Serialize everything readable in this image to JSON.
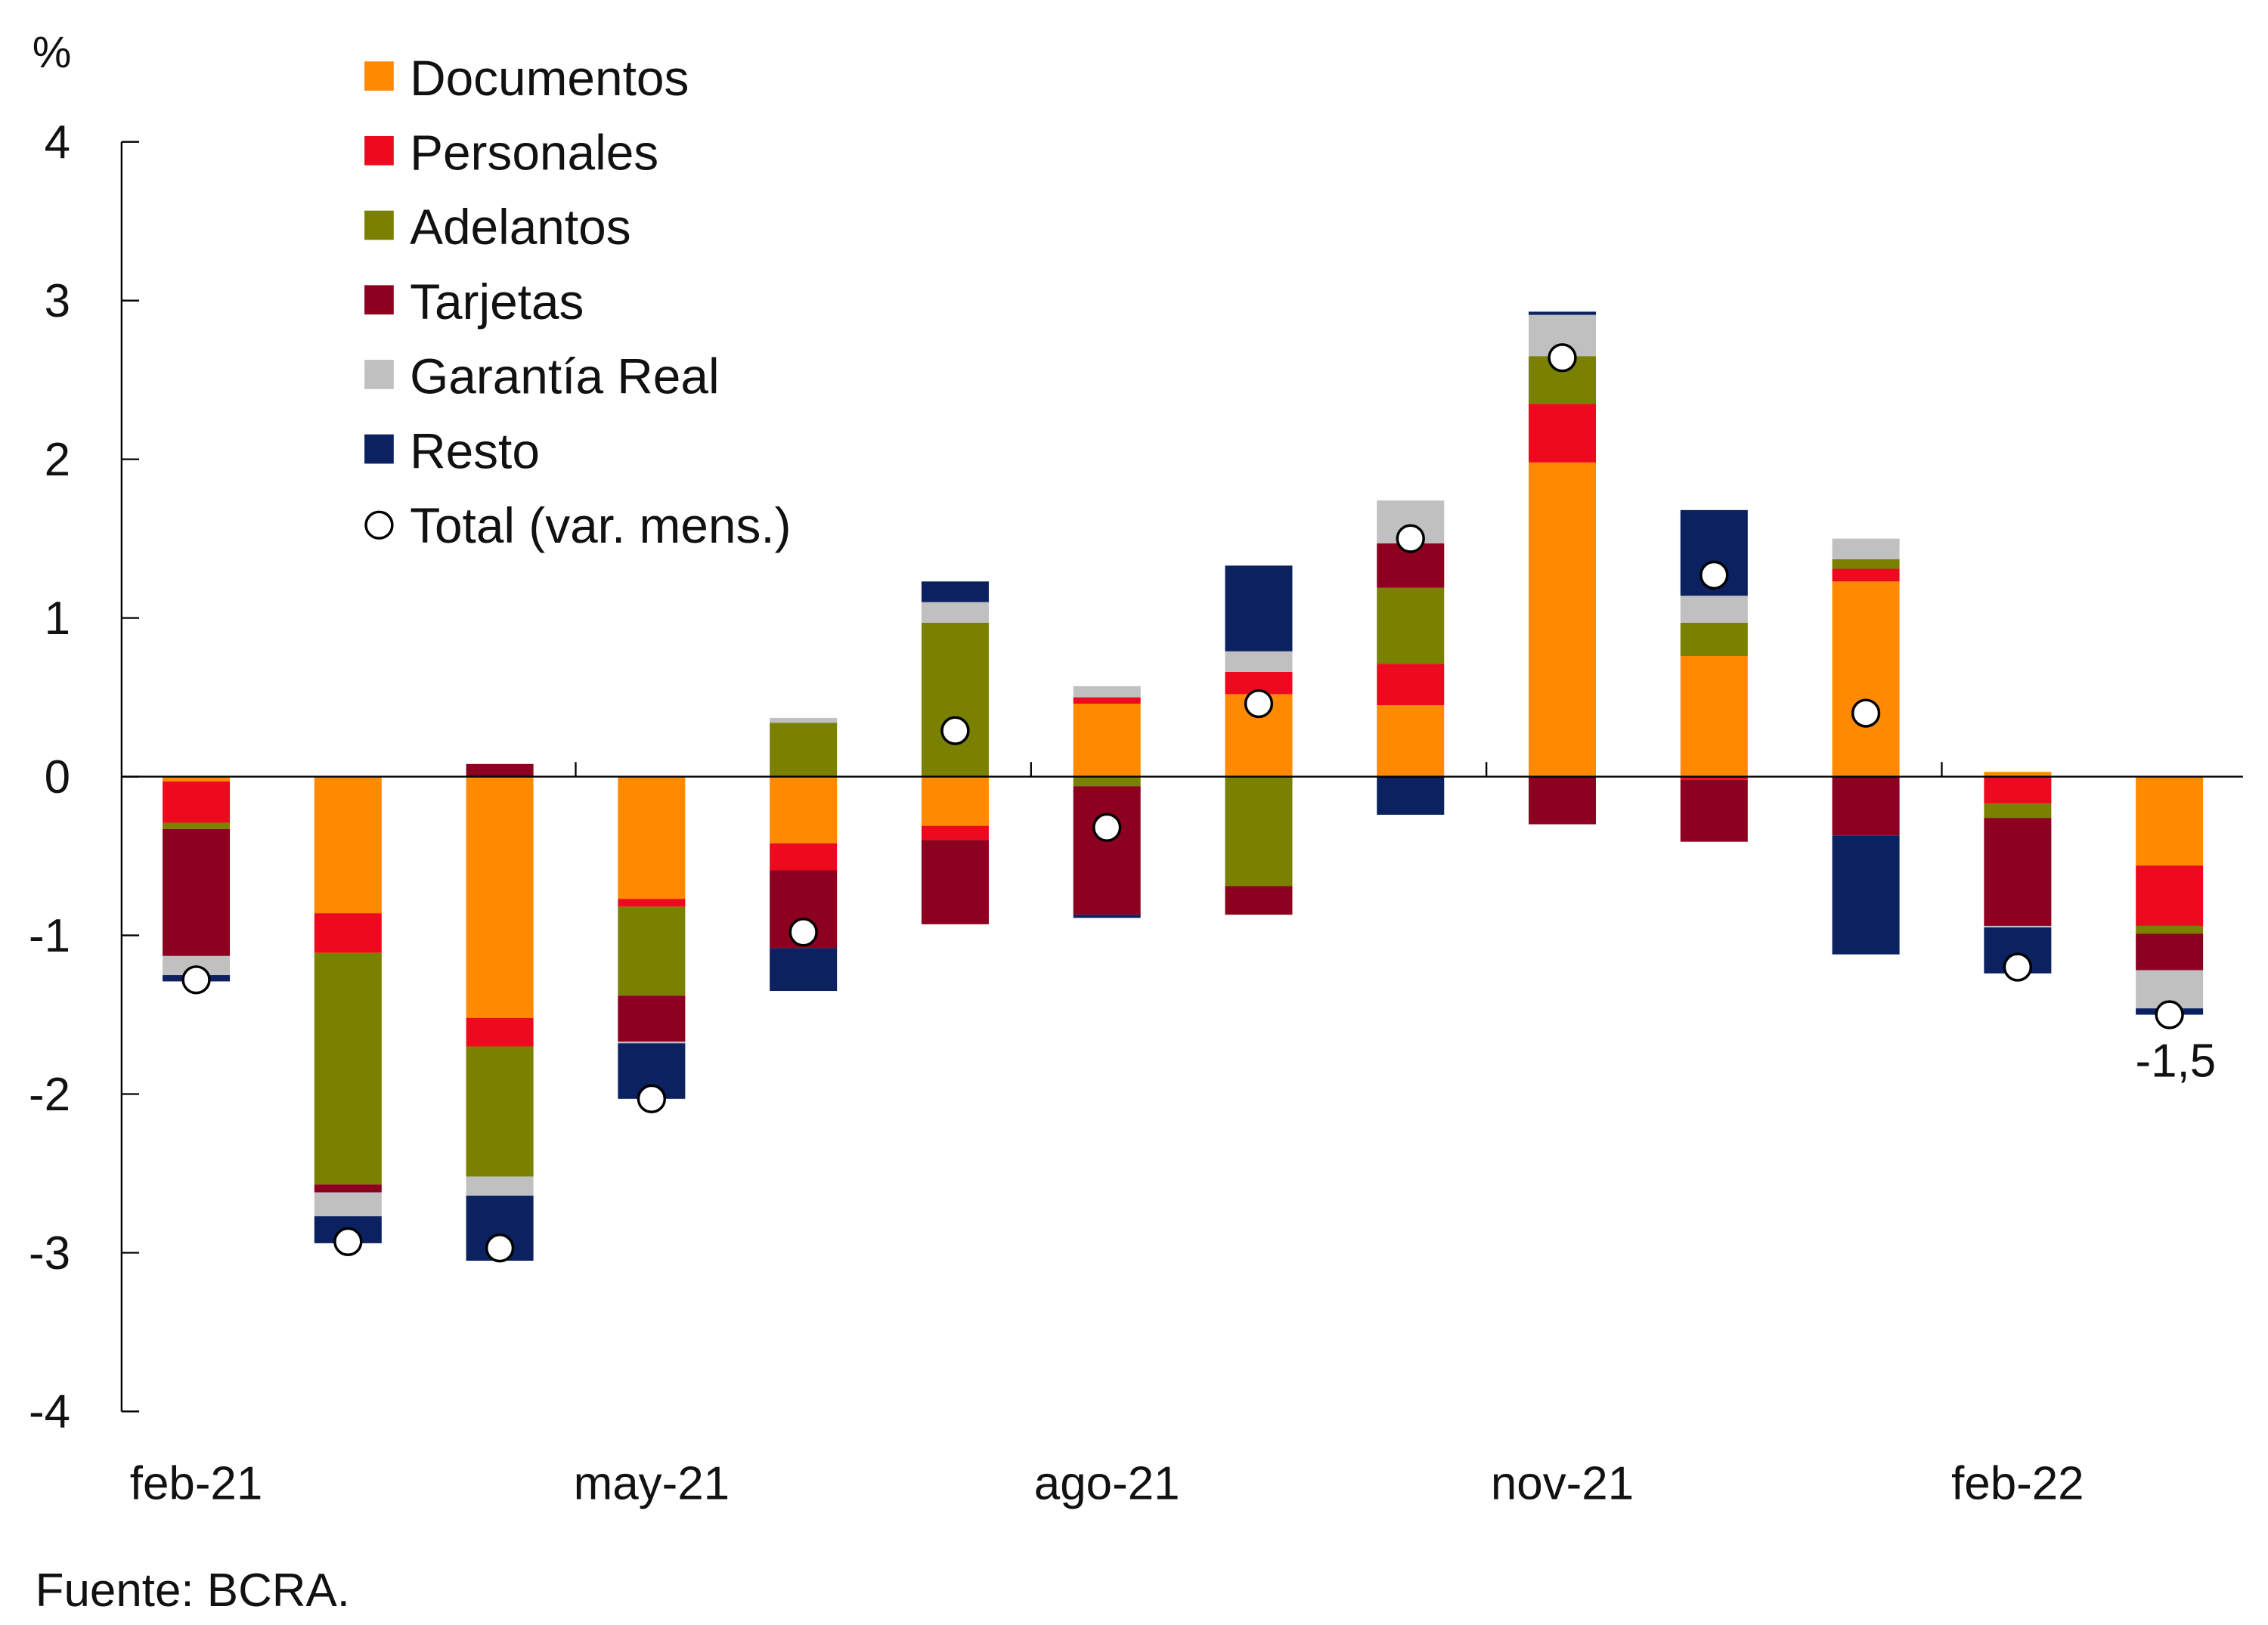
{
  "chart_data": {
    "type": "bar",
    "stacked": true,
    "unit_label": "%",
    "ylim": [
      -4,
      4
    ],
    "yticks": [
      4,
      3,
      2,
      1,
      0,
      -1,
      -2,
      -3,
      -4
    ],
    "categories": [
      "feb-21",
      "mar-21",
      "abr-21",
      "may-21",
      "jun-21",
      "jul-21",
      "ago-21",
      "sep-21",
      "oct-21",
      "nov-21",
      "dic-21",
      "ene-22",
      "feb-22",
      "mar-22"
    ],
    "xtick_labels": [
      "feb-21",
      "may-21",
      "ago-21",
      "nov-21",
      "feb-22"
    ],
    "xtick_categories": [
      "feb-21",
      "may-21",
      "ago-21",
      "nov-21",
      "feb-22"
    ],
    "grid": false,
    "legend_placement": "top-left",
    "series": [
      {
        "name": "Documentos",
        "color": "#FF8A00",
        "values": [
          -0.03,
          -0.86,
          -1.52,
          -0.77,
          -0.42,
          -0.31,
          0.46,
          0.52,
          0.45,
          1.98,
          0.76,
          1.23,
          0.03,
          -0.56
        ]
      },
      {
        "name": "Personales",
        "color": "#EE0A1E",
        "values": [
          -0.26,
          -0.25,
          -0.18,
          -0.05,
          -0.17,
          -0.09,
          0.04,
          0.14,
          0.26,
          0.37,
          -0.02,
          0.08,
          -0.17,
          -0.38
        ]
      },
      {
        "name": "Adelantos",
        "color": "#7A8000",
        "values": [
          -0.04,
          -1.46,
          -0.82,
          -0.56,
          0.34,
          0.97,
          -0.06,
          -0.69,
          0.48,
          0.3,
          0.21,
          0.06,
          -0.09,
          -0.05
        ]
      },
      {
        "name": "Tarjetas",
        "color": "#8C0020",
        "values": [
          -0.8,
          -0.05,
          0.08,
          -0.29,
          -0.49,
          -0.53,
          -0.81,
          -0.18,
          0.28,
          -0.3,
          -0.39,
          -0.37,
          -0.68,
          -0.23
        ]
      },
      {
        "name": "Garantía Real",
        "color": "#C0C0C0",
        "values": [
          -0.12,
          -0.15,
          -0.12,
          -0.01,
          0.03,
          0.13,
          0.07,
          0.13,
          0.27,
          0.26,
          0.17,
          0.13,
          -0.01,
          -0.24
        ]
      },
      {
        "name": "Resto",
        "color": "#0B2160",
        "values": [
          -0.04,
          -0.17,
          -0.41,
          -0.35,
          -0.27,
          0.13,
          -0.02,
          0.54,
          -0.24,
          0.02,
          0.54,
          -0.75,
          -0.29,
          -0.04
        ]
      }
    ],
    "total": {
      "name": "Total (var. mens.)",
      "values": [
        -1.28,
        -2.93,
        -2.97,
        -2.03,
        -0.98,
        0.29,
        -0.32,
        0.46,
        1.5,
        2.64,
        1.27,
        0.4,
        -1.2,
        -1.5
      ]
    },
    "annotation": "-1,5",
    "source": "Fuente: BCRA."
  }
}
